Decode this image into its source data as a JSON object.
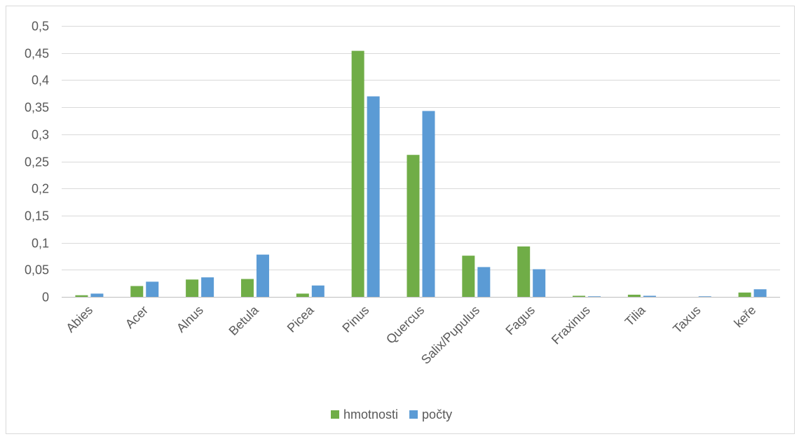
{
  "chart_data": {
    "type": "bar",
    "title": "",
    "xlabel": "",
    "ylabel": "",
    "categories": [
      "Abies",
      "Acer",
      "Alnus",
      "Betula",
      "Picea",
      "Pinus",
      "Quercus",
      "Salix/Pupulus",
      "Fagus",
      "Fraxinus",
      "Tilia",
      "Taxus",
      "keře"
    ],
    "series": [
      {
        "name": "hmotnosti",
        "color": "#70ad47",
        "values": [
          0.003,
          0.02,
          0.032,
          0.033,
          0.006,
          0.454,
          0.262,
          0.076,
          0.093,
          0.002,
          0.004,
          0.0,
          0.008
        ]
      },
      {
        "name": "počty",
        "color": "#5b9bd5",
        "values": [
          0.006,
          0.028,
          0.036,
          0.078,
          0.021,
          0.37,
          0.343,
          0.055,
          0.051,
          0.001,
          0.002,
          0.001,
          0.014
        ]
      }
    ],
    "ylim": [
      0,
      0.5
    ],
    "yticks": [
      "0",
      "0,05",
      "0,1",
      "0,15",
      "0,2",
      "0,25",
      "0,3",
      "0,35",
      "0,4",
      "0,45",
      "0,5"
    ],
    "grid": true,
    "legend_position": "bottom"
  }
}
